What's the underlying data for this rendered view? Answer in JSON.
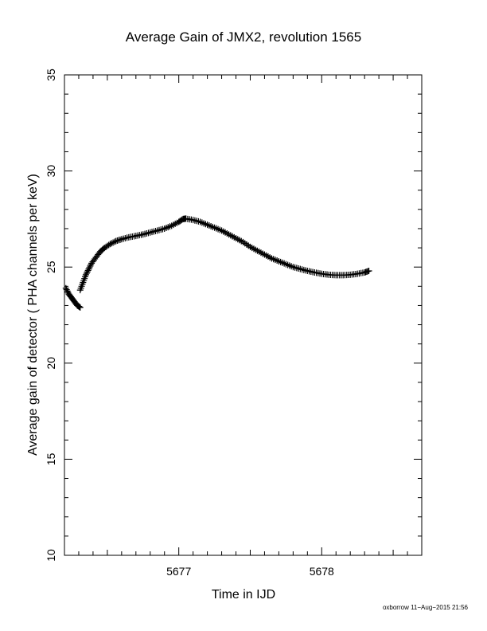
{
  "chart_data": {
    "type": "line",
    "title": "Average Gain of JMX2, revolution 1565",
    "xlabel": "Time in IJD",
    "ylabel": "Average gain of detector ( PHA channels per keV)",
    "xlim": [
      5676.2,
      5678.7
    ],
    "ylim": [
      10,
      35
    ],
    "xticks": [
      5677,
      5678
    ],
    "xtick_labels": [
      "5677",
      "5678"
    ],
    "yticks": [
      10,
      15,
      20,
      25,
      30,
      35
    ],
    "ytick_labels": [
      "10",
      "15",
      "20",
      "25",
      "30",
      "35"
    ],
    "grid": false,
    "marker": "+",
    "series": [
      {
        "x": [
          5676.21,
          5676.23,
          5676.25,
          5676.27,
          5676.29,
          5676.31
        ],
        "y": [
          23.9,
          23.6,
          23.4,
          23.2,
          23.0,
          22.9
        ]
      },
      {
        "x": [
          5676.31,
          5676.33,
          5676.35,
          5676.37,
          5676.39,
          5676.42,
          5676.45,
          5676.48,
          5676.52,
          5676.56,
          5676.6,
          5676.65,
          5676.7,
          5676.75,
          5676.8,
          5676.85,
          5676.9,
          5676.95,
          5677.0,
          5677.03,
          5677.05,
          5677.1,
          5677.15,
          5677.2,
          5677.25,
          5677.3,
          5677.35,
          5677.4,
          5677.45,
          5677.5,
          5677.55,
          5677.6,
          5677.65,
          5677.7,
          5677.75,
          5677.8,
          5677.85,
          5677.9,
          5677.95,
          5678.0,
          5678.05,
          5678.1,
          5678.15,
          5678.2,
          5678.25,
          5678.3,
          5678.33
        ],
        "y": [
          23.8,
          24.2,
          24.6,
          24.9,
          25.2,
          25.5,
          25.8,
          26.0,
          26.2,
          26.35,
          26.45,
          26.55,
          26.62,
          26.7,
          26.8,
          26.9,
          27.0,
          27.15,
          27.35,
          27.5,
          27.52,
          27.45,
          27.35,
          27.2,
          27.05,
          26.9,
          26.7,
          26.5,
          26.3,
          26.05,
          25.85,
          25.65,
          25.45,
          25.3,
          25.15,
          25.0,
          24.9,
          24.8,
          24.72,
          24.65,
          24.6,
          24.58,
          24.58,
          24.6,
          24.65,
          24.72,
          24.8
        ]
      }
    ]
  },
  "footer": "oxborrow 11−Aug−2015 21:56"
}
